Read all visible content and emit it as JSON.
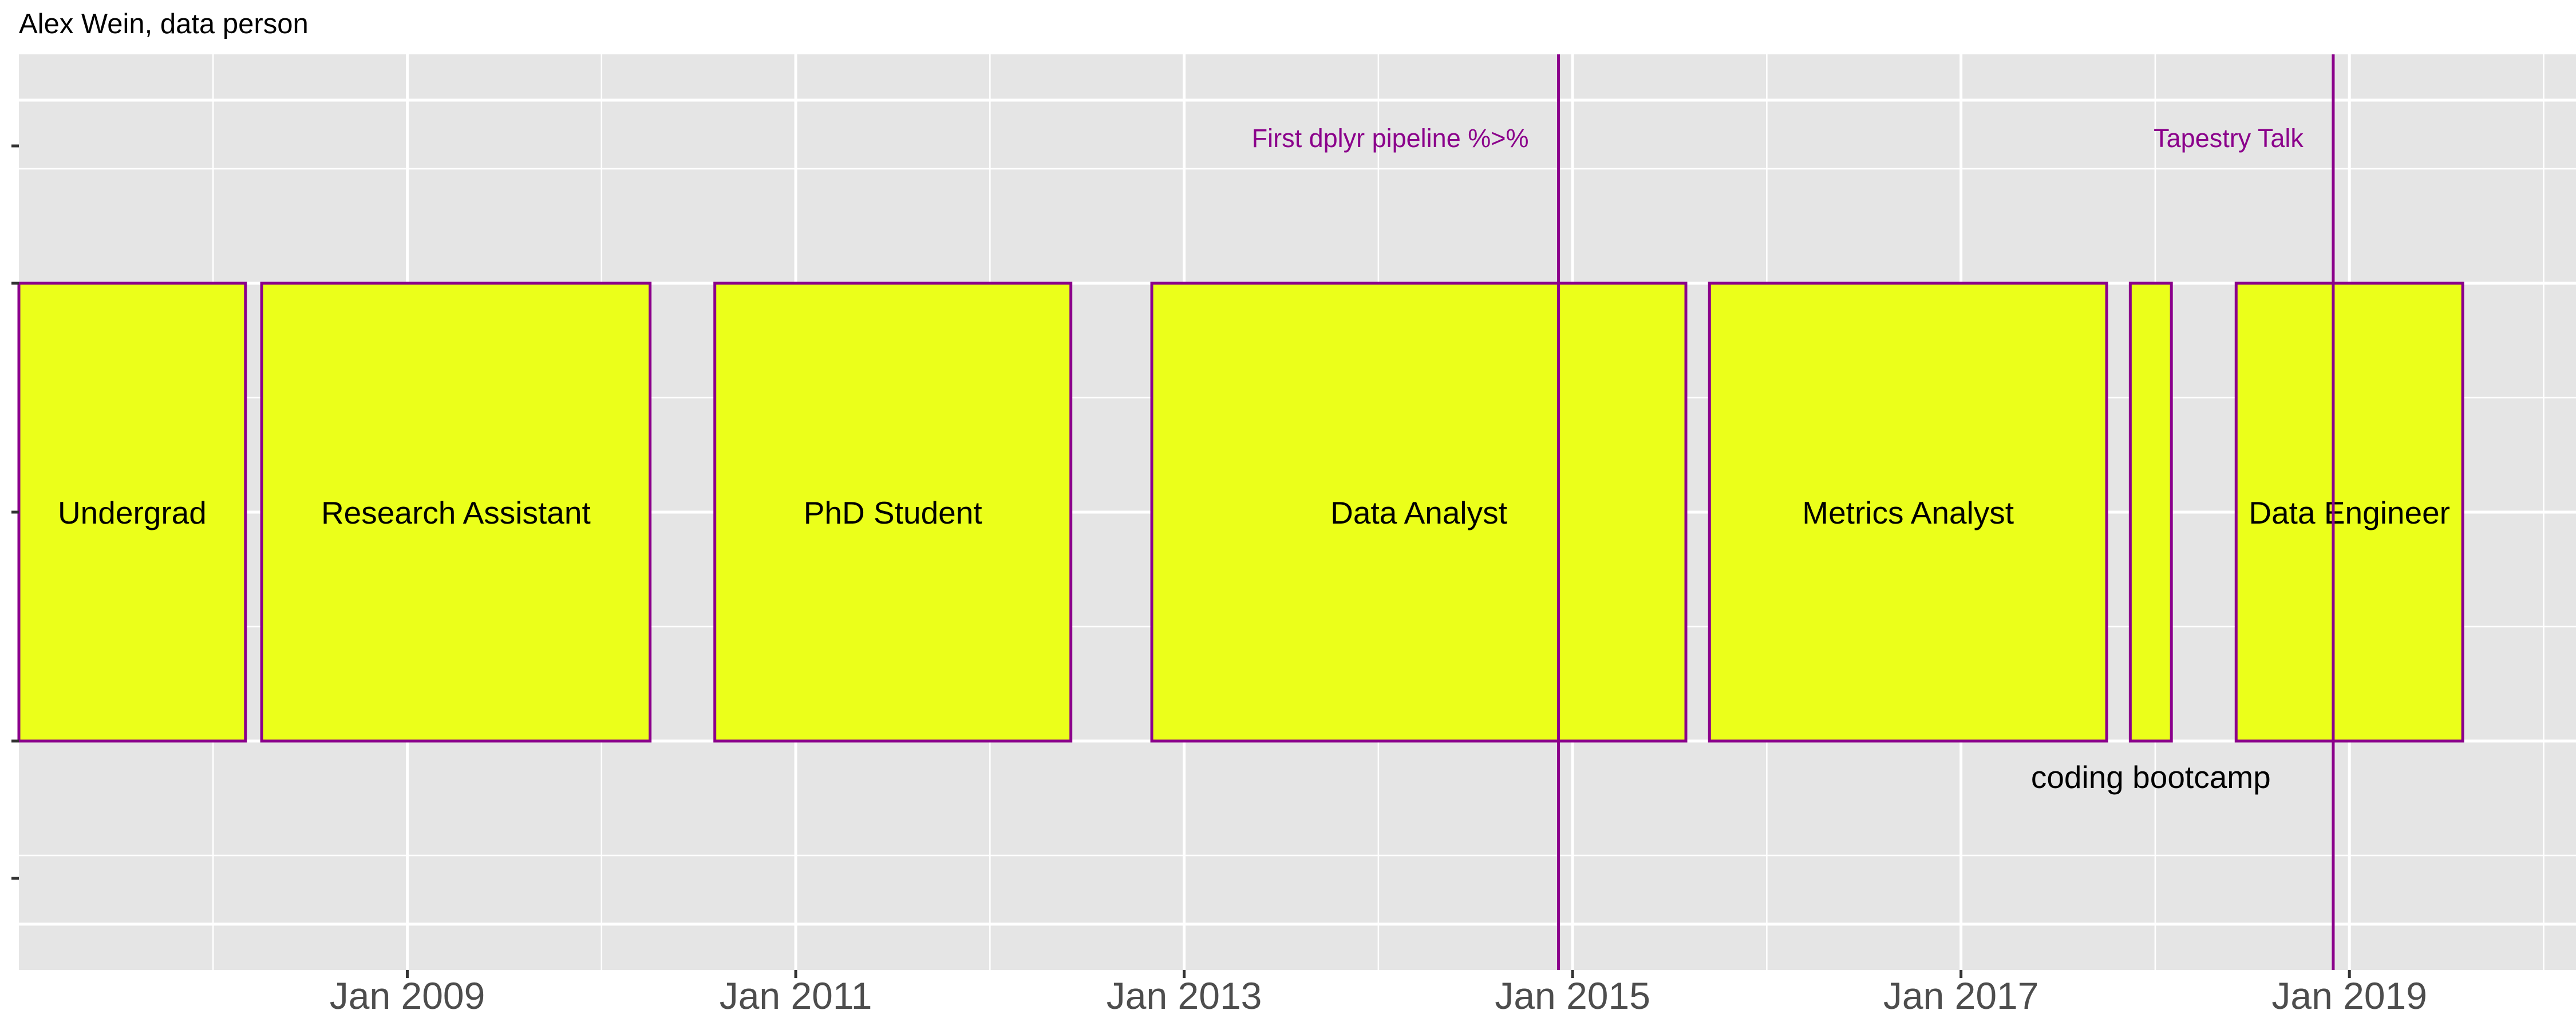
{
  "chart_data": {
    "type": "timeline",
    "title": "Alex Wein, data person",
    "xlabel": "",
    "ylabel": "",
    "x_ticks": [
      "Jan 2009",
      "Jan 2011",
      "Jan 2013",
      "Jan 2015",
      "Jan 2017",
      "Jan 2019"
    ],
    "xlim": [
      "2007-01-01",
      "2020-03-01"
    ],
    "ylim": [
      -2,
      2
    ],
    "grid": true,
    "colors": {
      "bar_fill": "#ebff1a",
      "bar_border": "#8b008b",
      "event": "#8b008b",
      "panel": "#e5e5e5",
      "grid": "#ffffff"
    },
    "periods": [
      {
        "label": "Undergrad",
        "start": "2007-01-01",
        "end": "2008-03-01"
      },
      {
        "label": "Research Assistant",
        "start": "2008-04-01",
        "end": "2010-04-01"
      },
      {
        "label": "PhD Student",
        "start": "2010-08-01",
        "end": "2012-06-01"
      },
      {
        "label": "Data Analyst",
        "start": "2012-11-01",
        "end": "2015-08-01"
      },
      {
        "label": "Metrics Analyst",
        "start": "2015-09-15",
        "end": "2017-10-01"
      },
      {
        "label": "coding bootcamp",
        "start": "2017-11-15",
        "end": "2018-02-01",
        "label_below": true
      },
      {
        "label": "Data Engineer",
        "start": "2018-06-01",
        "end": "2019-08-01"
      }
    ],
    "events": [
      {
        "label": "First dplyr pipeline %>%",
        "date": "2014-12-05"
      },
      {
        "label": "Tapestry Talk",
        "date": "2018-12-01"
      }
    ]
  }
}
